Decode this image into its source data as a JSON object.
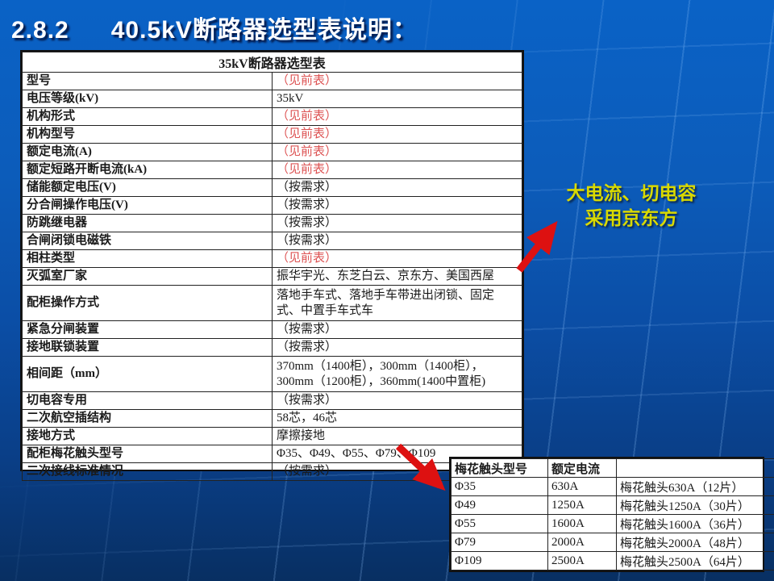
{
  "slide": {
    "title_number": "2.8.2",
    "title_text": "40.5kV断路器选型表说明：",
    "colors": {
      "background_top": "#0a62c6",
      "background_bottom": "#082f62",
      "title_text": "#fdfdff",
      "table_red_value": "#dd5353",
      "annotation_yellow": "#d9d900",
      "arrow_red": "#dd1111"
    }
  },
  "main_table": {
    "title": "35kV断路器选型表",
    "rows": [
      {
        "label": "型号",
        "value": "（见前表）",
        "red": true,
        "tall": false
      },
      {
        "label": "电压等级(kV)",
        "value": "35kV",
        "red": false,
        "tall": false
      },
      {
        "label": "机构形式",
        "value": "（见前表）",
        "red": true,
        "tall": false
      },
      {
        "label": "机构型号",
        "value": "（见前表）",
        "red": true,
        "tall": false
      },
      {
        "label": "额定电流(A)",
        "value": "（见前表）",
        "red": true,
        "tall": false
      },
      {
        "label": "额定短路开断电流(kA)",
        "value": "（见前表）",
        "red": true,
        "tall": false
      },
      {
        "label": "储能额定电压(V)",
        "value": "（按需求）",
        "red": false,
        "tall": false
      },
      {
        "label": "分合闸操作电压(V)",
        "value": "（按需求）",
        "red": false,
        "tall": false
      },
      {
        "label": "防跳继电器",
        "value": "（按需求）",
        "red": false,
        "tall": false
      },
      {
        "label": "合闸闭锁电磁铁",
        "value": "（按需求）",
        "red": false,
        "tall": false
      },
      {
        "label": "相柱类型",
        "value": "（见前表）",
        "red": true,
        "tall": false
      },
      {
        "label": "灭弧室厂家",
        "value": "振华宇光、东芝白云、京东方、美国西屋",
        "red": false,
        "tall": false
      },
      {
        "label": "配柜操作方式",
        "value": "落地手车式、落地手车带进出闭锁、固定式、中置手车式车",
        "red": false,
        "tall": true
      },
      {
        "label": "紧急分闸装置",
        "value": "（按需求）",
        "red": false,
        "tall": false
      },
      {
        "label": "接地联锁装置",
        "value": "（按需求）",
        "red": false,
        "tall": false
      },
      {
        "label": "相间距（mm）",
        "value": "370mm（1400柜），300mm（1400柜），300mm（1200柜），360mm(1400中置柜)",
        "red": false,
        "tall": true
      },
      {
        "label": "切电容专用",
        "value": "（按需求）",
        "red": false,
        "tall": false
      },
      {
        "label": "二次航空插结构",
        "value": "58芯，46芯",
        "red": false,
        "tall": false
      },
      {
        "label": "接地方式",
        "value": "摩擦接地",
        "red": false,
        "tall": false
      },
      {
        "label": "配柜梅花触头型号",
        "value": "Φ35、Φ49、Φ55、Φ79、Φ109",
        "red": false,
        "tall": false
      },
      {
        "label": "二次接线标准情况",
        "value": "（按需求）",
        "red": false,
        "tall": false
      }
    ]
  },
  "annotation": {
    "line1": "大电流、切电容",
    "line2": "采用京东方"
  },
  "contact_table": {
    "headers": [
      "梅花触头型号",
      "额定电流",
      ""
    ],
    "rows": [
      [
        "Φ35",
        "630A",
        "梅花触头630A（12片）"
      ],
      [
        "Φ49",
        "1250A",
        "梅花触头1250A（30片）"
      ],
      [
        "Φ55",
        "1600A",
        "梅花触头1600A（36片）"
      ],
      [
        "Φ79",
        "2000A",
        "梅花触头2000A（48片）"
      ],
      [
        "Φ109",
        "2500A",
        "梅花触头2500A（64片）"
      ]
    ]
  }
}
